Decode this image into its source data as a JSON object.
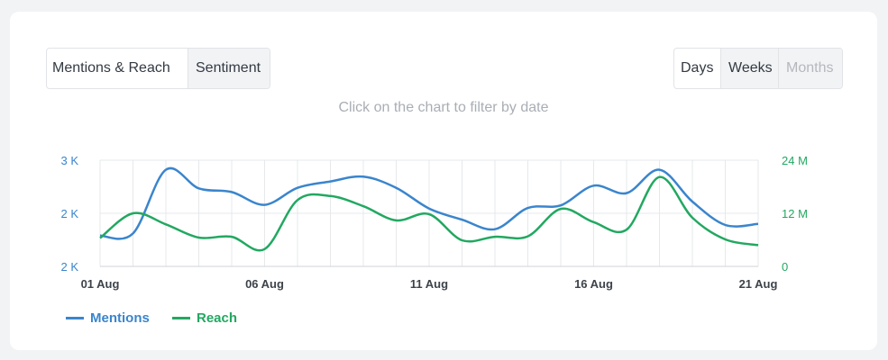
{
  "tabs": {
    "mentions_reach": "Mentions & Reach",
    "sentiment": "Sentiment"
  },
  "period": {
    "days": "Days",
    "weeks": "Weeks",
    "months": "Months"
  },
  "hint": "Click on the chart to filter by date",
  "colors": {
    "mentions": "#3a85cd",
    "reach": "#22a861",
    "grid": "#e6e8eb",
    "axis": "#cfd3d8"
  },
  "chart_data": {
    "type": "line",
    "x": [
      "01 Aug",
      "02 Aug",
      "03 Aug",
      "04 Aug",
      "05 Aug",
      "06 Aug",
      "07 Aug",
      "08 Aug",
      "09 Aug",
      "10 Aug",
      "11 Aug",
      "12 Aug",
      "13 Aug",
      "14 Aug",
      "15 Aug",
      "16 Aug",
      "17 Aug",
      "18 Aug",
      "19 Aug",
      "20 Aug",
      "21 Aug"
    ],
    "x_tick_labels": [
      "01 Aug",
      "06 Aug",
      "11 Aug",
      "16 Aug",
      "21 Aug"
    ],
    "y_left_tick_labels": [
      "3 K",
      "2 K",
      "2 K"
    ],
    "y_right_tick_labels": [
      "24 M",
      "12 M",
      "0"
    ],
    "y_left_lim": [
      1500,
      2500
    ],
    "y_right_lim": [
      0,
      24000000
    ],
    "grid": true,
    "legend_position": "bottom-left",
    "series": [
      {
        "name": "Mentions",
        "axis": "left",
        "values": [
          1790,
          1810,
          2410,
          2235,
          2200,
          2080,
          2240,
          2300,
          2345,
          2240,
          2045,
          1940,
          1850,
          2050,
          2075,
          2260,
          2190,
          2410,
          2110,
          1890,
          1900
        ]
      },
      {
        "name": "Reach",
        "axis": "right",
        "values": [
          6400000,
          12000000,
          9500000,
          6500000,
          6700000,
          3900000,
          15000000,
          15900000,
          13600000,
          10400000,
          11800000,
          5900000,
          6700000,
          6800000,
          13000000,
          10000000,
          8300000,
          20200000,
          11000000,
          6100000,
          4800000
        ]
      }
    ]
  }
}
